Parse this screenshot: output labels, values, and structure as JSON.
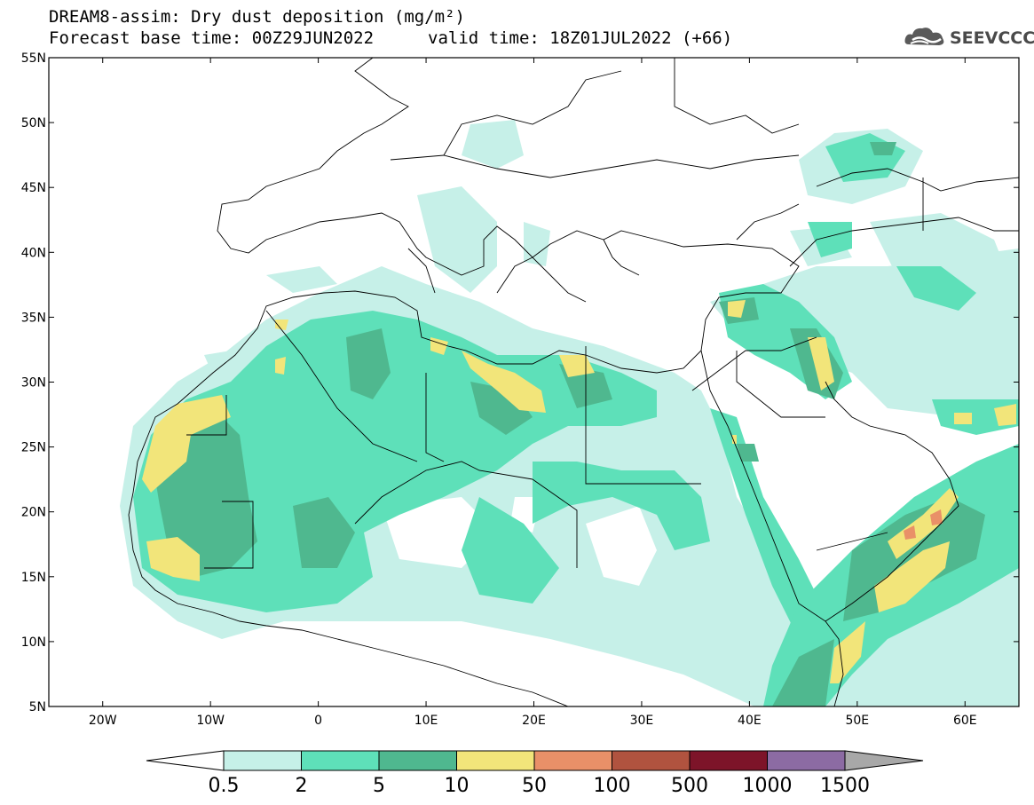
{
  "header": {
    "title_line1": "DREAM8-assim: Dry dust deposition (mg/m²)",
    "title_line2": "Forecast base time: 00Z29JUN2022",
    "valid_time": "valid time: 18Z01JUL2022 (+66)",
    "logo_text": "SEEVCCC",
    "logo_icon": "cloud-logo-icon"
  },
  "map": {
    "lon_range": [
      -25,
      65
    ],
    "lat_range": [
      5,
      55
    ],
    "lat_labels": [
      "55N",
      "50N",
      "45N",
      "40N",
      "35N",
      "30N",
      "25N",
      "20N",
      "15N",
      "10N",
      "5N"
    ],
    "lon_labels": [
      "20W",
      "10W",
      "0",
      "10E",
      "20E",
      "30E",
      "40E",
      "50E",
      "60E"
    ]
  },
  "legend": {
    "labels": [
      "0.5",
      "2",
      "5",
      "10",
      "50",
      "100",
      "500",
      "1000",
      "1500"
    ],
    "colors": [
      "#c6f0e8",
      "#5ee0b9",
      "#4fb88f",
      "#f2e57a",
      "#e99068",
      "#b0533f",
      "#7d1429",
      "#8c6ba3"
    ],
    "over_color": "#a8a8a8",
    "under_color": "#ffffff"
  }
}
